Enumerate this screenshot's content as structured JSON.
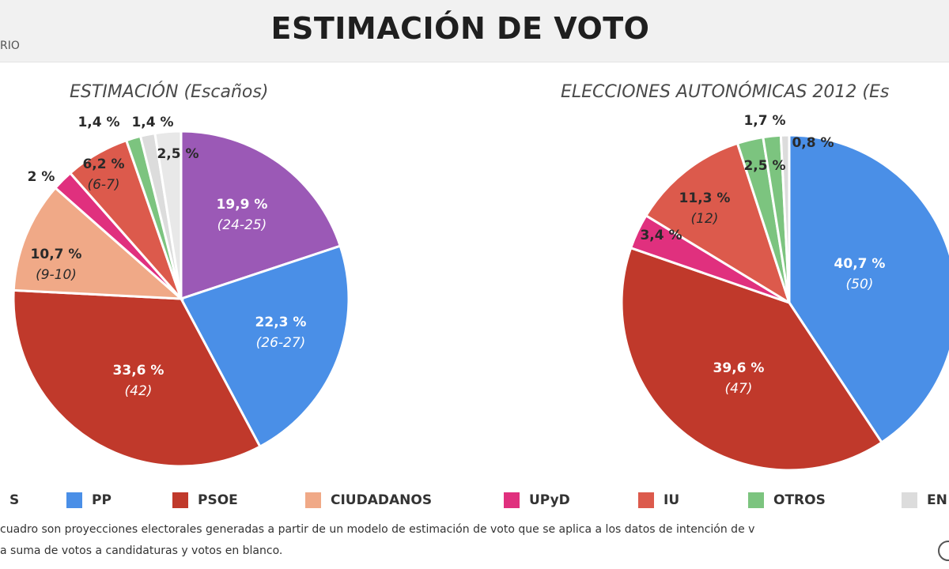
{
  "header": {
    "title": "ESTIMACIÓN DE VOTO",
    "source_fragment": "RIO"
  },
  "chart_data": [
    {
      "type": "pie",
      "title": "ESTIMACIÓN (Escaños)",
      "slices": [
        {
          "party": "PODEMOS",
          "percent_label": "19,9 %",
          "seats_label": "(24-25)",
          "value": 19.9,
          "color": "#9b59b6"
        },
        {
          "party": "PP",
          "percent_label": "22,3 %",
          "seats_label": "(26-27)",
          "value": 22.3,
          "color": "#4a8fe7"
        },
        {
          "party": "PSOE",
          "percent_label": "33,6 %",
          "seats_label": "(42)",
          "value": 33.6,
          "color": "#c0392b"
        },
        {
          "party": "CIUDADANOS",
          "percent_label": "10,7 %",
          "seats_label": "(9-10)",
          "value": 10.7,
          "color": "#f0a987"
        },
        {
          "party": "UPyD",
          "percent_label": "2 %",
          "seats_label": "",
          "value": 2.0,
          "color": "#e0307e"
        },
        {
          "party": "IU",
          "percent_label": "6,2 %",
          "seats_label": "(6-7)",
          "value": 6.2,
          "color": "#dc5a4c"
        },
        {
          "party": "OTROS",
          "percent_label": "1,4 %",
          "seats_label": "",
          "value": 1.4,
          "color": "#7cc47f"
        },
        {
          "party": "EN BLANCO",
          "percent_label": "1,4 %",
          "seats_label": "",
          "value": 1.4,
          "color": "#dcdcdc"
        },
        {
          "party": "",
          "percent_label": "2,5 %",
          "seats_label": "",
          "value": 2.5,
          "color": "#e8e8e8"
        }
      ]
    },
    {
      "type": "pie",
      "title": "ELECCIONES AUTONÓMICAS 2012  (Es",
      "slices": [
        {
          "party": "PP",
          "percent_label": "40,7 %",
          "seats_label": "(50)",
          "value": 40.7,
          "color": "#4a8fe7"
        },
        {
          "party": "PSOE",
          "percent_label": "39,6 %",
          "seats_label": "(47)",
          "value": 39.6,
          "color": "#c0392b"
        },
        {
          "party": "UPyD",
          "percent_label": "3,4 %",
          "seats_label": "",
          "value": 3.4,
          "color": "#e0307e"
        },
        {
          "party": "IU",
          "percent_label": "11,3 %",
          "seats_label": "(12)",
          "value": 11.3,
          "color": "#dc5a4c"
        },
        {
          "party": "OTROS",
          "percent_label": "2,5 %",
          "seats_label": "",
          "value": 2.5,
          "color": "#7cc47f"
        },
        {
          "party": "",
          "percent_label": "1,7 %",
          "seats_label": "",
          "value": 1.7,
          "color": "#7cc47f"
        },
        {
          "party": "EN BLANCO",
          "percent_label": "0,8 %",
          "seats_label": "",
          "value": 0.8,
          "color": "#dcdcdc"
        }
      ]
    }
  ],
  "legend": [
    {
      "label": "S",
      "color": "#9b59b6"
    },
    {
      "label": "PP",
      "color": "#4a8fe7"
    },
    {
      "label": "PSOE",
      "color": "#c0392b"
    },
    {
      "label": "CIUDADANOS",
      "color": "#f0a987"
    },
    {
      "label": "UPyD",
      "color": "#e0307e"
    },
    {
      "label": "IU",
      "color": "#dc5a4c"
    },
    {
      "label": "OTROS",
      "color": "#7cc47f"
    },
    {
      "label": "EN",
      "color": "#dcdcdc"
    }
  ],
  "footnote": {
    "line1": "cuadro son proyecciones electorales generadas a partir de un modelo de estimación de voto que se aplica a los datos de intención de v",
    "line2": "a suma de votos a candidaturas y votos en blanco."
  }
}
